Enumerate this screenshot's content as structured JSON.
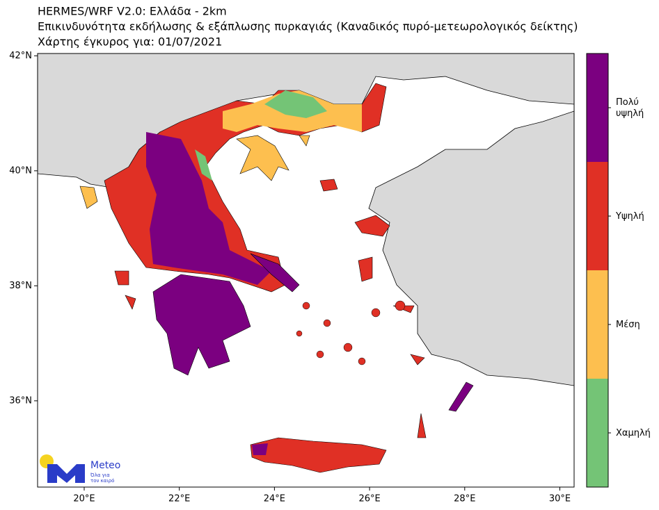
{
  "header": {
    "title_lines": [
      "HERMES/WRF V2.0: Ελλάδα - 2km",
      "Επικινδυνότητα εκδήλωσης & εξάπλωσης πυρκαγιάς (Καναδικός πυρό-μετεωρολογικός δείκτης)",
      "Χάρτης έγκυρος για: 01/07/2021"
    ]
  },
  "map": {
    "lon_range": [
      19.02,
      30.3
    ],
    "lat_range": [
      34.5,
      42.04
    ],
    "lon_ticks": [
      {
        "value": 20,
        "label": "20°E"
      },
      {
        "value": 22,
        "label": "22°E"
      },
      {
        "value": 24,
        "label": "24°E"
      },
      {
        "value": 26,
        "label": "26°E"
      },
      {
        "value": 28,
        "label": "28°E"
      },
      {
        "value": 30,
        "label": "30°E"
      }
    ],
    "lat_ticks": [
      {
        "value": 42,
        "label": "42°N"
      },
      {
        "value": 40,
        "label": "40°N"
      },
      {
        "value": 38,
        "label": "38°N"
      },
      {
        "value": 36,
        "label": "36°N"
      }
    ]
  },
  "legend": {
    "classes": [
      {
        "label": "Πολύ\nυψηλή",
        "color": "#7b0080"
      },
      {
        "label": "Υψηλή",
        "color": "#e03025"
      },
      {
        "label": "Μέση",
        "color": "#fdbf4f"
      },
      {
        "label": "Χαμηλή",
        "color": "#74c476"
      }
    ]
  },
  "logo": {
    "name": "Meteo",
    "tagline": [
      "Όλα για",
      "τον καιρό"
    ]
  }
}
